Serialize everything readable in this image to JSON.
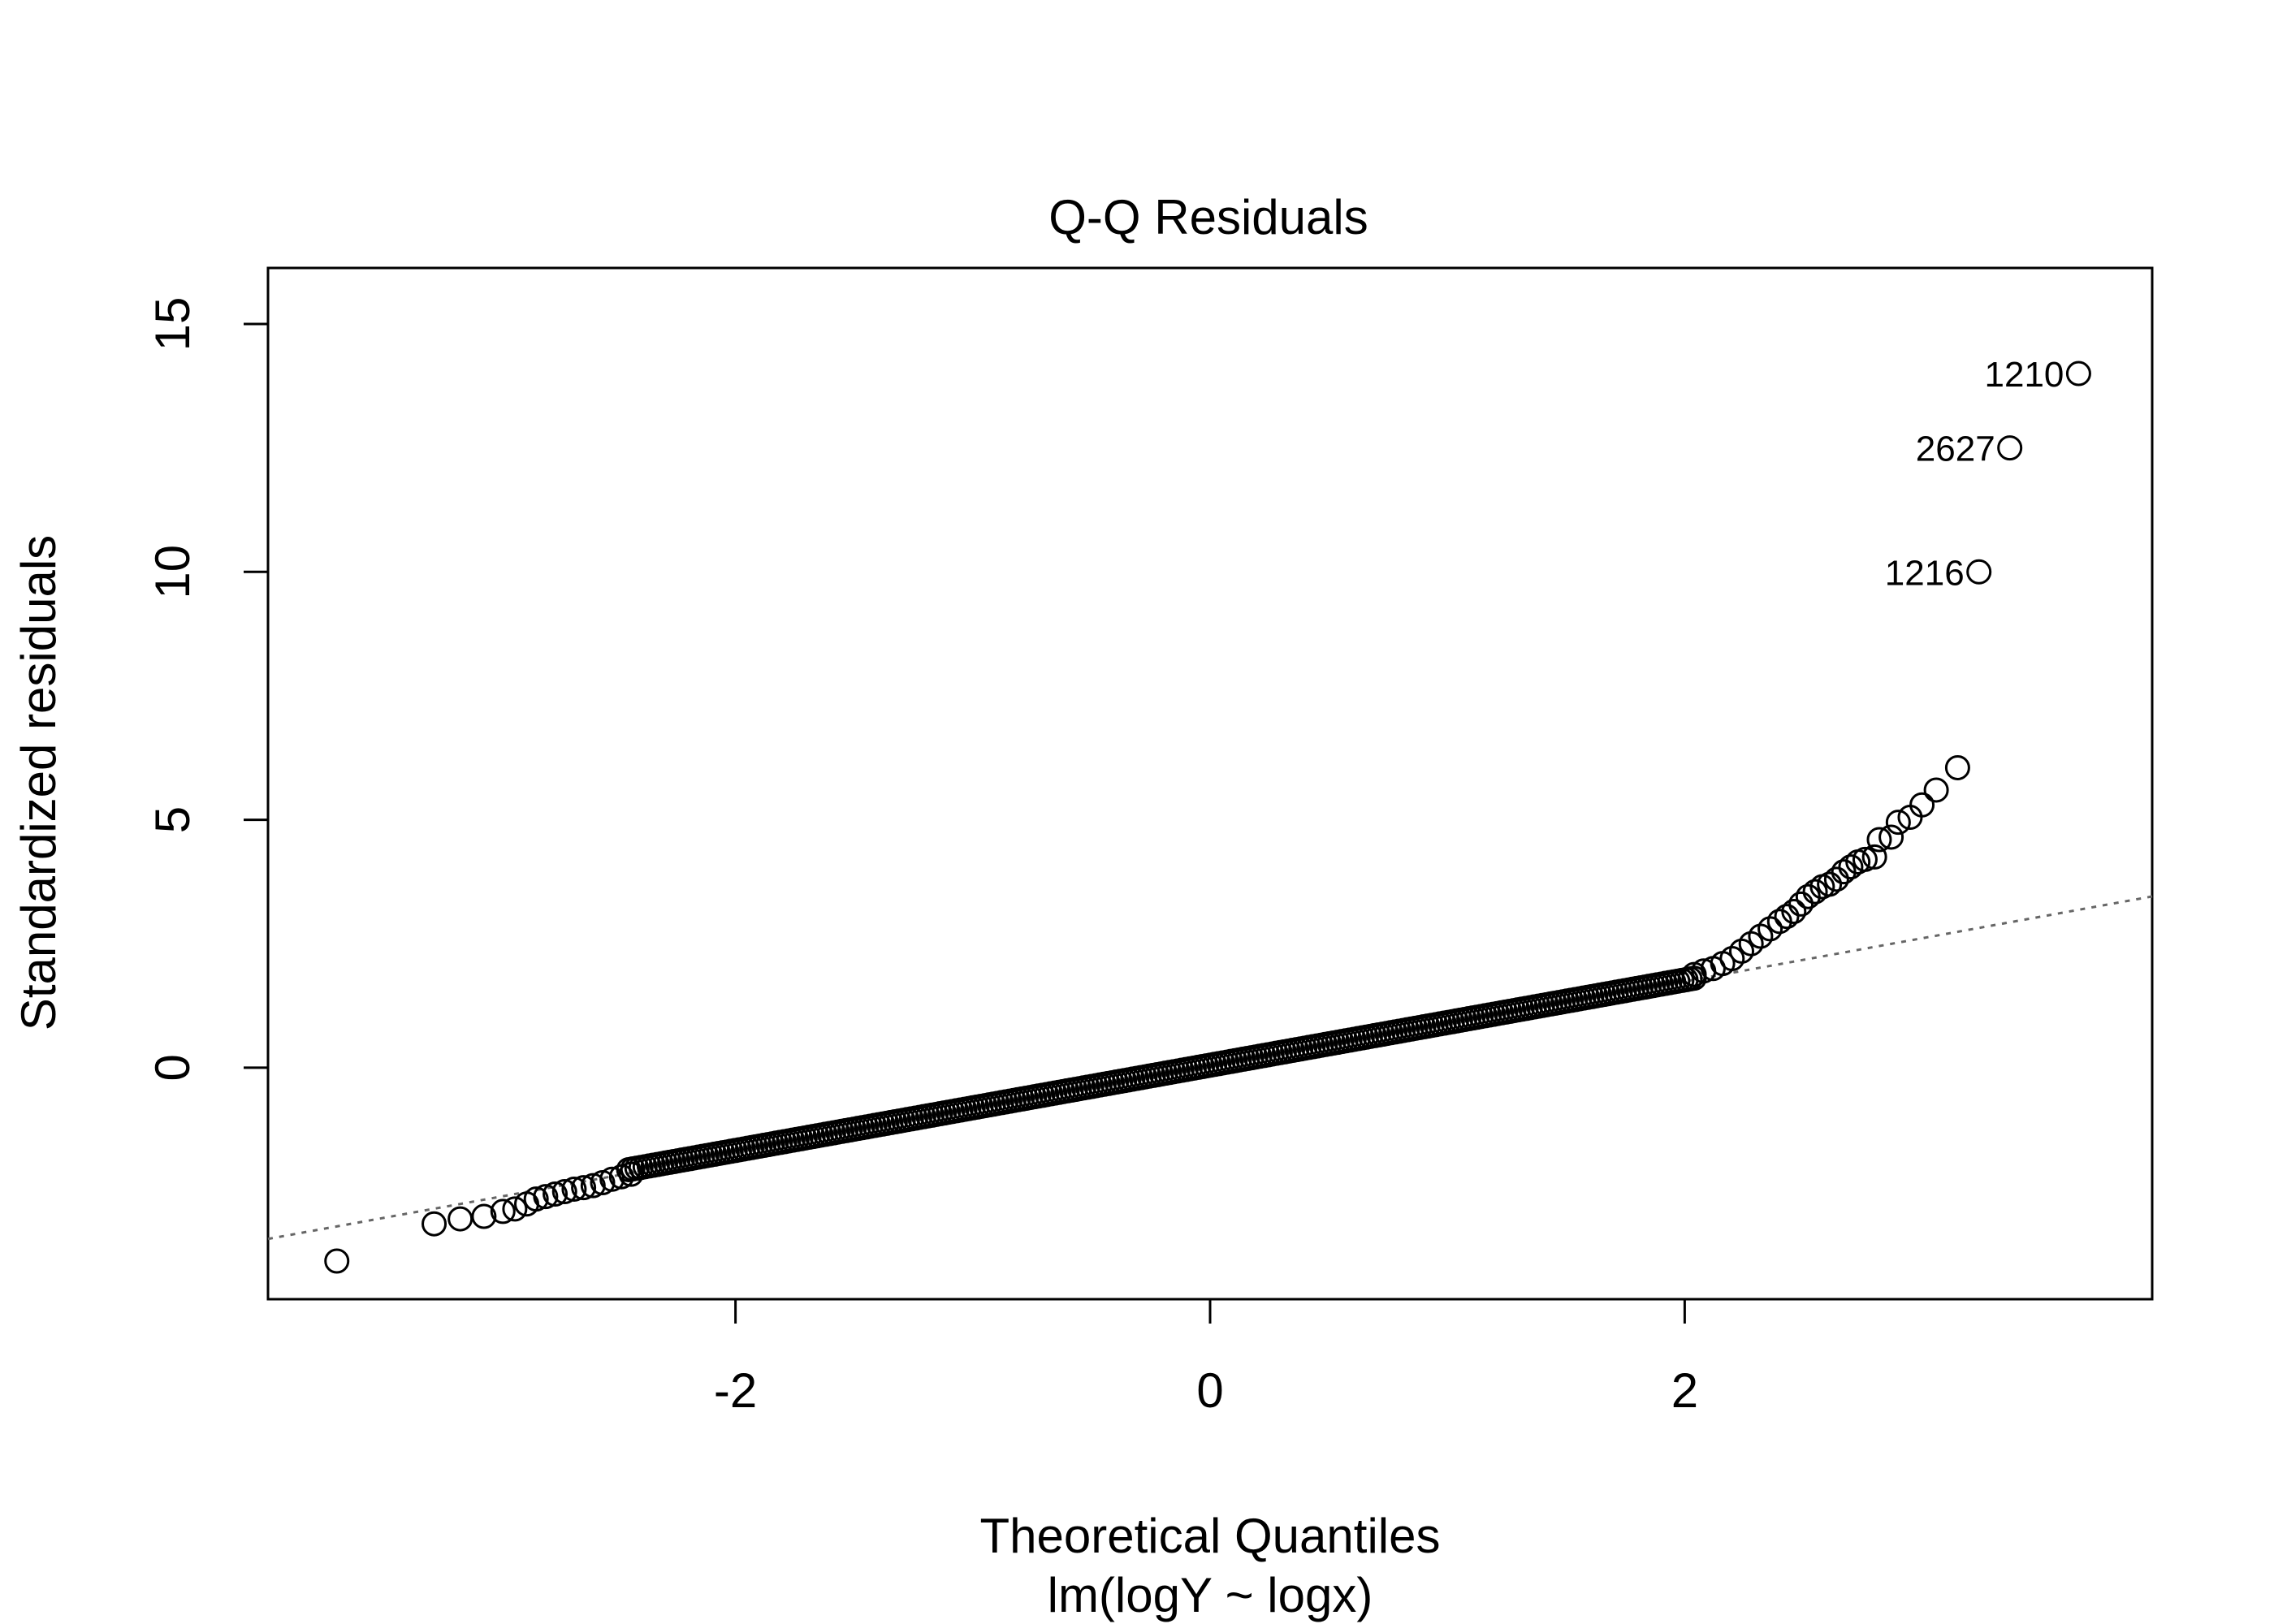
{
  "chart_data": {
    "type": "scatter",
    "title": "Q-Q Residuals",
    "xlabel": "Theoretical Quantiles",
    "subtitle": "lm(logY ~ logx)",
    "ylabel": "Standardized residuals",
    "xlim": [
      -3.97,
      3.97
    ],
    "ylim": [
      -4.67,
      16.13
    ],
    "xticks": [
      -2,
      0,
      2
    ],
    "xtick_labels": [
      "-2",
      "0",
      "2"
    ],
    "yticks": [
      0,
      5,
      10,
      15
    ],
    "ytick_labels": [
      "0",
      "5",
      "10",
      "15"
    ],
    "reference_line": {
      "slope": 0.87,
      "intercept": 0.0,
      "style": "dotted"
    },
    "outliers": [
      {
        "x": 3.66,
        "y": 14.0,
        "label": "1210"
      },
      {
        "x": 3.37,
        "y": 12.5,
        "label": "2627"
      },
      {
        "x": 3.24,
        "y": 10.0,
        "label": "1216"
      }
    ],
    "upper_tail": [
      [
        3.15,
        6.05
      ],
      [
        3.06,
        5.6
      ],
      [
        3.0,
        5.3
      ],
      [
        2.95,
        5.05
      ],
      [
        2.9,
        4.95
      ],
      [
        2.87,
        4.65
      ],
      [
        2.82,
        4.6
      ],
      [
        2.8,
        4.25
      ],
      [
        2.76,
        4.2
      ],
      [
        2.73,
        4.15
      ],
      [
        2.7,
        4.05
      ],
      [
        2.67,
        3.95
      ],
      [
        2.64,
        3.8
      ],
      [
        2.61,
        3.7
      ],
      [
        2.58,
        3.65
      ],
      [
        2.55,
        3.55
      ],
      [
        2.52,
        3.45
      ],
      [
        2.49,
        3.3
      ],
      [
        2.46,
        3.15
      ],
      [
        2.43,
        3.05
      ],
      [
        2.4,
        2.95
      ],
      [
        2.36,
        2.8
      ],
      [
        2.32,
        2.65
      ],
      [
        2.28,
        2.5
      ],
      [
        2.24,
        2.35
      ],
      [
        2.2,
        2.2
      ],
      [
        2.16,
        2.1
      ],
      [
        2.12,
        2.0
      ],
      [
        2.08,
        1.95
      ],
      [
        2.04,
        1.88
      ]
    ],
    "lower_tail": [
      [
        -3.68,
        -3.9
      ],
      [
        -3.27,
        -3.15
      ],
      [
        -3.16,
        -3.05
      ],
      [
        -3.06,
        -3.0
      ],
      [
        -2.98,
        -2.9
      ],
      [
        -2.93,
        -2.85
      ],
      [
        -2.88,
        -2.75
      ],
      [
        -2.84,
        -2.65
      ],
      [
        -2.8,
        -2.6
      ],
      [
        -2.76,
        -2.55
      ],
      [
        -2.72,
        -2.5
      ],
      [
        -2.68,
        -2.45
      ],
      [
        -2.64,
        -2.42
      ],
      [
        -2.6,
        -2.38
      ],
      [
        -2.56,
        -2.32
      ],
      [
        -2.52,
        -2.25
      ],
      [
        -2.48,
        -2.2
      ],
      [
        -2.44,
        -2.15
      ]
    ],
    "body_fit": {
      "x_start": -2.45,
      "x_end": 2.04,
      "slope": 0.86,
      "intercept": 0.05
    }
  }
}
